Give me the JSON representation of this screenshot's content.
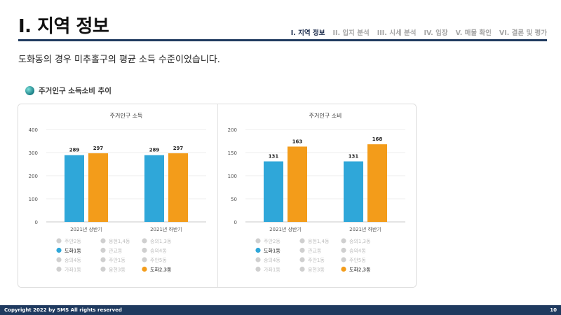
{
  "header": {
    "title": "I. 지역 정보",
    "nav": [
      "I. 지역 정보",
      "II. 입지 분석",
      "III. 시세 분석",
      "IV. 임장",
      "V. 매물 확인",
      "VI. 결론 및 평가"
    ],
    "active_nav": 0
  },
  "description": "도화동의 경우 미추홀구의 평균 소득 수준이었습니다.",
  "section_title": "주거인구 소득소비 추이",
  "colors": {
    "blue": "#2fa7d9",
    "orange": "#f39c1a",
    "gray": "#cfcfcf",
    "navy": "#1f3a5f"
  },
  "legend_items": [
    {
      "label": "주안2동",
      "color": "gray",
      "active": false
    },
    {
      "label": "용현1,4동",
      "color": "gray",
      "active": false
    },
    {
      "label": "숭의1,3동",
      "color": "gray",
      "active": false
    },
    {
      "label": "도화1동",
      "color": "blue",
      "active": true
    },
    {
      "label": "관교동",
      "color": "gray",
      "active": false
    },
    {
      "label": "숭의4동",
      "color": "gray",
      "active": false
    },
    {
      "label": "숭의4동",
      "color": "gray",
      "active": false
    },
    {
      "label": "주안1동",
      "color": "gray",
      "active": false
    },
    {
      "label": "주안5동",
      "color": "gray",
      "active": false
    },
    {
      "label": "가좌1동",
      "color": "gray",
      "active": false
    },
    {
      "label": "용현3동",
      "color": "gray",
      "active": false
    },
    {
      "label": "도화2,3동",
      "color": "orange",
      "active": true
    }
  ],
  "chart_data": [
    {
      "type": "bar",
      "title": "주거인구 소득",
      "categories": [
        "2021년 상반기",
        "2021년 하반기"
      ],
      "series": [
        {
          "name": "도화1동",
          "values": [
            289,
            289
          ]
        },
        {
          "name": "도화2,3동",
          "values": [
            297,
            297
          ]
        }
      ],
      "ylim": [
        0,
        400
      ],
      "yticks": [
        0,
        100,
        200,
        300,
        400
      ]
    },
    {
      "type": "bar",
      "title": "주거인구 소비",
      "categories": [
        "2021년 상반기",
        "2021년 하반기"
      ],
      "series": [
        {
          "name": "도화1동",
          "values": [
            131,
            131
          ]
        },
        {
          "name": "도화2,3동",
          "values": [
            163,
            168
          ]
        }
      ],
      "ylim": [
        0,
        200
      ],
      "yticks": [
        0,
        50,
        100,
        150,
        200
      ]
    }
  ],
  "footer": {
    "copyright": "Copyright 2022 by SMS All rights reserved",
    "page": "10"
  }
}
